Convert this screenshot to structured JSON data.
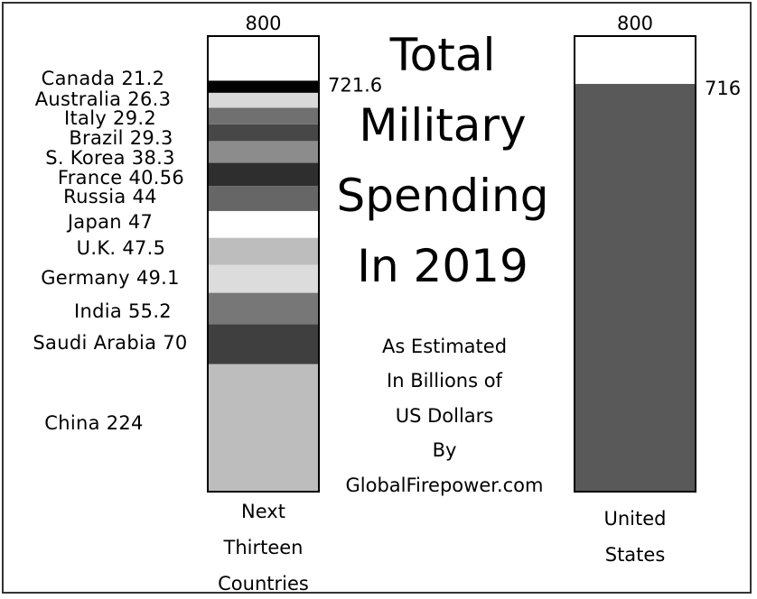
{
  "chart_data": {
    "type": "bar",
    "title_lines": [
      "Total",
      "Military",
      "Spending",
      "In 2019"
    ],
    "subtitle_lines": [
      "As Estimated",
      "In Billions of",
      "US Dollars",
      "By",
      "GlobalFirepower.com"
    ],
    "ylim": [
      0,
      800
    ],
    "bars": [
      {
        "category_lines": [
          "Next",
          "Thirteen",
          "Countries"
        ],
        "top_label": "800",
        "total_label": "721.6",
        "total": 721.6,
        "segments": [
          {
            "label": "China 224",
            "value": 224,
            "color": "#bdbdbd"
          },
          {
            "label": "Saudi Arabia 70",
            "value": 70,
            "color": "#3f3f3f"
          },
          {
            "label": "India 55.2",
            "value": 55.2,
            "color": "#777777"
          },
          {
            "label": "Germany 49.1",
            "value": 49.1,
            "color": "#dcdcdc"
          },
          {
            "label": "U.K. 47.5",
            "value": 47.5,
            "color": "#bdbdbd"
          },
          {
            "label": "Japan 47",
            "value": 47,
            "color": "#ffffff"
          },
          {
            "label": "Russia 44",
            "value": 44,
            "color": "#666666"
          },
          {
            "label": "France 40.56",
            "value": 40.56,
            "color": "#2e2e2e"
          },
          {
            "label": "S. Korea 38.3",
            "value": 38.3,
            "color": "#8c8c8c"
          },
          {
            "label": "Brazil 29.3",
            "value": 29.3,
            "color": "#474747"
          },
          {
            "label": "Italy 29.2",
            "value": 29.2,
            "color": "#707070"
          },
          {
            "label": "Australia 26.3",
            "value": 26.3,
            "color": "#d9d9d9"
          },
          {
            "label": "Canada 21.2",
            "value": 21.2,
            "color": "#000000"
          }
        ]
      },
      {
        "category_lines": [
          "United",
          "States"
        ],
        "top_label": "800",
        "total_label": "716",
        "total": 716,
        "segments": [
          {
            "label": "",
            "value": 716,
            "color": "#595959"
          }
        ]
      }
    ]
  }
}
